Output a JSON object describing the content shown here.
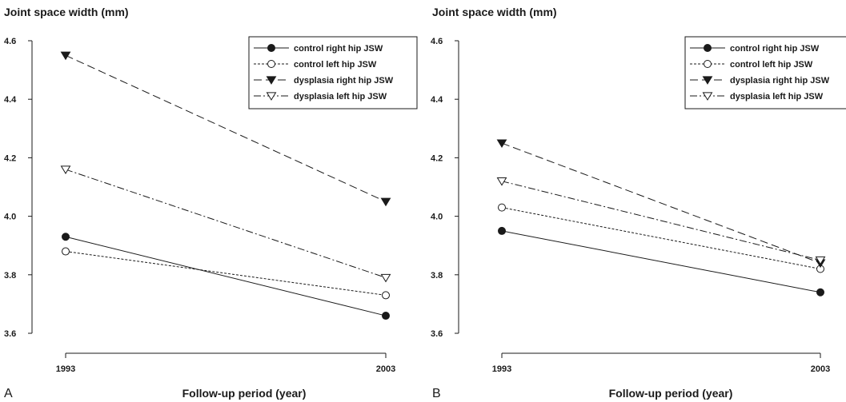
{
  "chart_data": [
    {
      "type": "line",
      "panel_label": "A",
      "ylabel": "Joint space width (mm)",
      "xlabel": "Follow-up period (year)",
      "categories": [
        "1993",
        "2003"
      ],
      "yticks": [
        "3.6",
        "3.8",
        "4.0",
        "4.2",
        "4.4",
        "4.6"
      ],
      "ylim": [
        3.57,
        4.63
      ],
      "legend_position": "top-right",
      "grid": false,
      "series": [
        {
          "name": "control right hip JSW",
          "values": [
            3.93,
            3.66
          ],
          "marker": "filled-circle",
          "line": "solid"
        },
        {
          "name": "control left hip JSW",
          "values": [
            3.88,
            3.73
          ],
          "marker": "open-circle",
          "line": "dotted"
        },
        {
          "name": "dysplasia right hip JSW",
          "values": [
            4.55,
            4.05
          ],
          "marker": "filled-triangle-down",
          "line": "dashed"
        },
        {
          "name": "dysplasia left hip JSW",
          "values": [
            4.16,
            3.79
          ],
          "marker": "open-triangle-down",
          "line": "dash-dot"
        }
      ]
    },
    {
      "type": "line",
      "panel_label": "B",
      "ylabel": "Joint space width (mm)",
      "xlabel": "Follow-up period (year)",
      "categories": [
        "1993",
        "2003"
      ],
      "yticks": [
        "3.6",
        "3.8",
        "4.0",
        "4.2",
        "4.4",
        "4.6"
      ],
      "ylim": [
        3.57,
        4.63
      ],
      "legend_position": "top-right",
      "grid": false,
      "series": [
        {
          "name": "control right hip JSW",
          "values": [
            3.95,
            3.74
          ],
          "marker": "filled-circle",
          "line": "solid"
        },
        {
          "name": "control left hip JSW",
          "values": [
            4.03,
            3.82
          ],
          "marker": "open-circle",
          "line": "dotted"
        },
        {
          "name": "dysplasia right hip JSW",
          "values": [
            4.25,
            3.84
          ],
          "marker": "filled-triangle-down",
          "line": "dashed"
        },
        {
          "name": "dysplasia left hip JSW",
          "values": [
            4.12,
            3.85
          ],
          "marker": "open-triangle-down",
          "line": "dash-dot"
        }
      ]
    }
  ]
}
